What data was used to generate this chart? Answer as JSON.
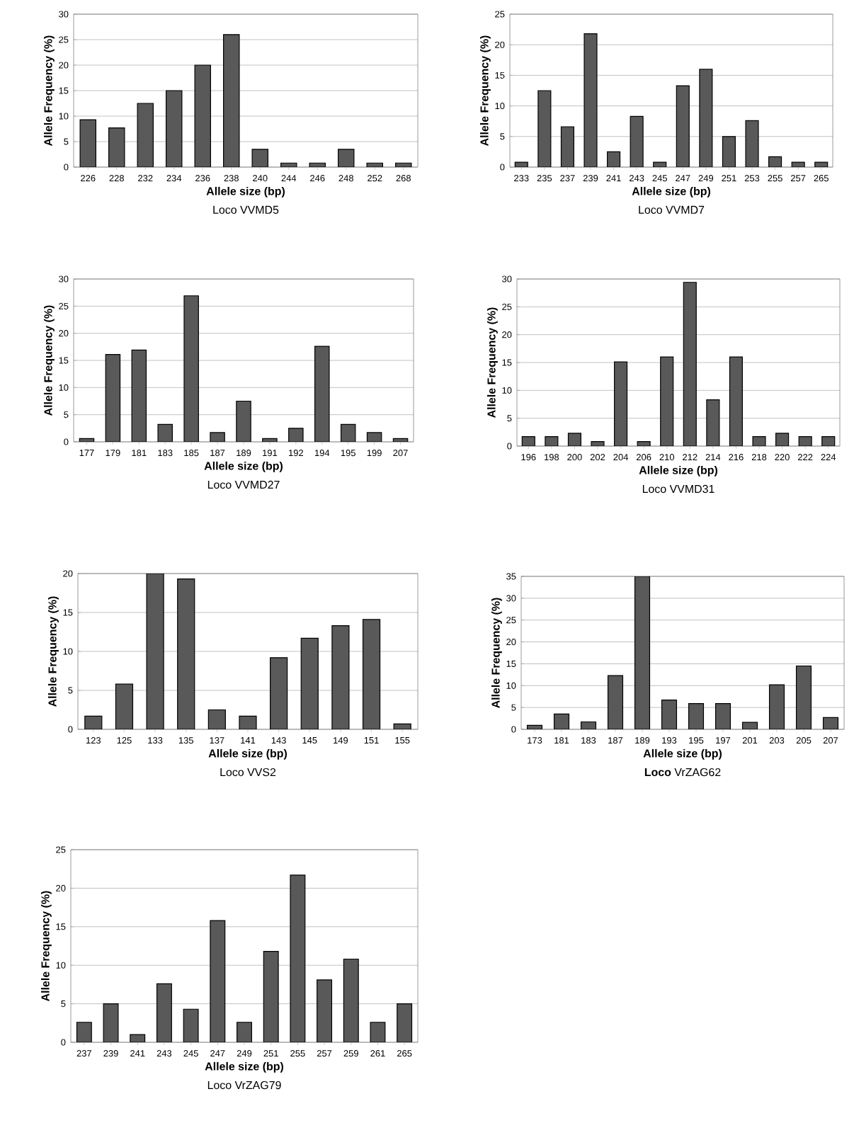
{
  "chart_data": [
    {
      "type": "bar",
      "title": "Loco VVMD5",
      "xlabel": "Allele size (bp)",
      "ylabel": "Allele Frequency (%)",
      "categories": [
        "226",
        "228",
        "232",
        "234",
        "236",
        "238",
        "240",
        "244",
        "246",
        "248",
        "252",
        "268"
      ],
      "values": [
        9.3,
        7.7,
        12.5,
        15,
        20,
        26,
        3.5,
        0.8,
        0.8,
        3.5,
        0.8,
        0.8
      ],
      "color": "#595959",
      "ylim": [
        0,
        30
      ],
      "yticks": [
        0,
        5,
        10,
        15,
        20,
        25,
        30
      ],
      "grid": "y"
    },
    {
      "type": "bar",
      "title": "Loco VVMD7",
      "xlabel": "Allele size (bp)",
      "ylabel": "Allele Frequency (%)",
      "categories": [
        "233",
        "235",
        "237",
        "239",
        "241",
        "243",
        "245",
        "247",
        "249",
        "251",
        "253",
        "255",
        "257",
        "265"
      ],
      "values": [
        0.8,
        12.5,
        6.6,
        21.8,
        2.5,
        8.3,
        0.8,
        13.3,
        16,
        5,
        7.6,
        1.7,
        0.8,
        0.8
      ],
      "color": "#595959",
      "ylim": [
        0,
        25
      ],
      "yticks": [
        0,
        5,
        10,
        15,
        20,
        25
      ],
      "grid": "y"
    },
    {
      "type": "bar",
      "title": "Loco VVMD27",
      "xlabel": "Allele size (bp)",
      "ylabel": "Allele Frequency (%)",
      "categories": [
        "177",
        "179",
        "181",
        "183",
        "185",
        "187",
        "189",
        "191",
        "192",
        "194",
        "195",
        "199",
        "207"
      ],
      "values": [
        0.6,
        16.1,
        16.9,
        3.2,
        26.9,
        1.7,
        7.5,
        0.6,
        2.5,
        17.6,
        3.2,
        1.7,
        0.6
      ],
      "color": "#595959",
      "ylim": [
        0,
        30
      ],
      "yticks": [
        0,
        5,
        10,
        15,
        20,
        25,
        30
      ],
      "grid": "y"
    },
    {
      "type": "bar",
      "title": "Loco VVMD31",
      "xlabel": "Allele size (bp)",
      "ylabel": "Allele Frequency (%)",
      "categories": [
        "196",
        "198",
        "200",
        "202",
        "204",
        "206",
        "210",
        "212",
        "214",
        "216",
        "218",
        "220",
        "222",
        "224"
      ],
      "values": [
        1.7,
        1.7,
        2.3,
        0.8,
        15.1,
        0.8,
        16,
        29.4,
        8.3,
        16,
        1.7,
        2.3,
        1.7,
        1.7
      ],
      "color": "#595959",
      "ylim": [
        0,
        30
      ],
      "yticks": [
        0,
        5,
        10,
        15,
        20,
        25,
        30
      ],
      "grid": "y"
    },
    {
      "type": "bar",
      "title": "Loco VVS2",
      "xlabel": "Allele size (bp)",
      "ylabel": "Allele Frequency (%)",
      "categories": [
        "123",
        "125",
        "133",
        "135",
        "137",
        "141",
        "143",
        "145",
        "149",
        "151",
        "155"
      ],
      "values": [
        1.7,
        5.8,
        20,
        19.3,
        2.5,
        1.7,
        9.2,
        11.7,
        13.3,
        14.1,
        0.7
      ],
      "color": "#595959",
      "ylim": [
        0,
        20
      ],
      "yticks": [
        0,
        5,
        10,
        15,
        20
      ],
      "grid": "y"
    },
    {
      "type": "bar",
      "title": "**Loco** VrZAG62",
      "xlabel": "Allele size (bp)",
      "ylabel": "Allele Frequency (%)",
      "categories": [
        "173",
        "181",
        "183",
        "187",
        "189",
        "193",
        "195",
        "197",
        "201",
        "203",
        "205",
        "207"
      ],
      "values": [
        0.9,
        3.5,
        1.7,
        12.3,
        35,
        6.7,
        5.9,
        5.9,
        1.6,
        10.2,
        14.5,
        2.7
      ],
      "color": "#595959",
      "ylim": [
        0,
        35
      ],
      "yticks": [
        0,
        5,
        10,
        15,
        20,
        25,
        30,
        35
      ],
      "grid": "y"
    },
    {
      "type": "bar",
      "title": "Loco VrZAG79",
      "xlabel": "Allele size (bp)",
      "ylabel": "Allele Frequency (%)",
      "categories": [
        "237",
        "239",
        "241",
        "243",
        "245",
        "247",
        "249",
        "251",
        "255",
        "257",
        "259",
        "261",
        "265"
      ],
      "values": [
        2.6,
        5,
        1,
        7.6,
        4.3,
        15.8,
        2.6,
        11.8,
        21.7,
        8.1,
        10.8,
        2.6,
        5
      ],
      "color": "#595959",
      "ylim": [
        0,
        25
      ],
      "yticks": [
        0,
        5,
        10,
        15,
        20,
        25
      ],
      "grid": "y"
    }
  ]
}
